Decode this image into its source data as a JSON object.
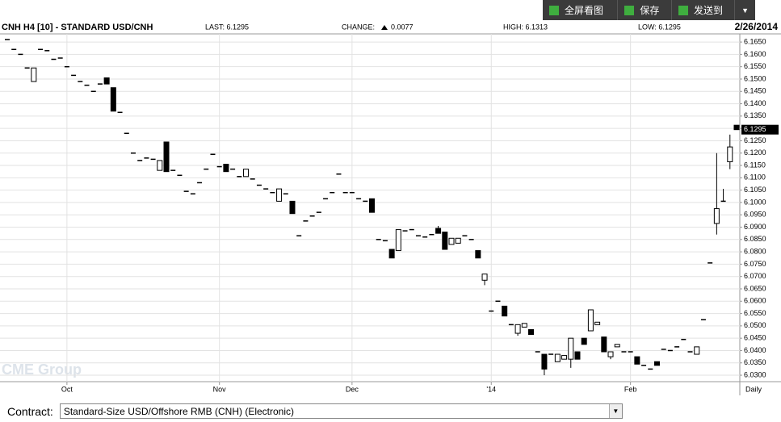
{
  "toolbar": {
    "fullscreen": "全屏看图",
    "save": "保存",
    "send": "发送到"
  },
  "contract": {
    "label": "Contract:",
    "value": "Standard-Size USD/Offshore RMB (CNH) (Electronic)"
  },
  "chart_data": {
    "type": "candlestick",
    "title": "CNH H4 [10] - STANDARD USD/CNH",
    "last": "LAST: 6.1295",
    "change_label": "CHANGE:",
    "change": "0.0077",
    "high": "HIGH: 6.1313",
    "low": "LOW: 6.1295",
    "date": "2/26/2014",
    "watermark": "CME Group",
    "x_unit": "Daily",
    "price_marker": {
      "value": 6.1295,
      "label": "6.1295"
    },
    "grid": true,
    "ylim": [
      6.0274,
      6.1683
    ],
    "yticks": [
      {
        "value": 6.03,
        "label": "6.0300"
      },
      {
        "value": 6.035,
        "label": "6.0350"
      },
      {
        "value": 6.04,
        "label": "6.0400"
      },
      {
        "value": 6.045,
        "label": "6.0450"
      },
      {
        "value": 6.05,
        "label": "6.0500"
      },
      {
        "value": 6.055,
        "label": "6.0550"
      },
      {
        "value": 6.06,
        "label": "6.0600"
      },
      {
        "value": 6.065,
        "label": "6.0650"
      },
      {
        "value": 6.07,
        "label": "6.0700"
      },
      {
        "value": 6.075,
        "label": "6.0750"
      },
      {
        "value": 6.08,
        "label": "6.0800"
      },
      {
        "value": 6.085,
        "label": "6.0850"
      },
      {
        "value": 6.09,
        "label": "6.0900"
      },
      {
        "value": 6.095,
        "label": "6.0950"
      },
      {
        "value": 6.1,
        "label": "6.1000"
      },
      {
        "value": 6.105,
        "label": "6.1050"
      },
      {
        "value": 6.11,
        "label": "6.1100"
      },
      {
        "value": 6.115,
        "label": "6.1150"
      },
      {
        "value": 6.12,
        "label": "6.1200"
      },
      {
        "value": 6.125,
        "label": "6.1250"
      },
      {
        "value": 6.13,
        "label": "6.1300"
      },
      {
        "value": 6.135,
        "label": "6.1350"
      },
      {
        "value": 6.14,
        "label": "6.1400"
      },
      {
        "value": 6.145,
        "label": "6.1450"
      },
      {
        "value": 6.15,
        "label": "6.1500"
      },
      {
        "value": 6.155,
        "label": "6.1550"
      },
      {
        "value": 6.16,
        "label": "6.1600"
      },
      {
        "value": 6.165,
        "label": "6.1650"
      }
    ],
    "categories": [
      null,
      null,
      null,
      null,
      null,
      null,
      null,
      null,
      null,
      "Oct",
      null,
      null,
      null,
      null,
      null,
      null,
      null,
      null,
      null,
      null,
      null,
      null,
      null,
      null,
      null,
      null,
      null,
      null,
      null,
      null,
      null,
      null,
      "Nov",
      null,
      null,
      null,
      null,
      null,
      null,
      null,
      null,
      null,
      null,
      null,
      null,
      null,
      null,
      null,
      null,
      null,
      null,
      null,
      "Dec",
      null,
      null,
      null,
      null,
      null,
      null,
      null,
      null,
      null,
      null,
      null,
      null,
      null,
      null,
      null,
      null,
      null,
      null,
      null,
      null,
      "'14",
      null,
      null,
      null,
      null,
      null,
      null,
      null,
      null,
      null,
      null,
      null,
      null,
      null,
      null,
      null,
      null,
      null,
      null,
      null,
      null,
      "Feb",
      null,
      null,
      null,
      null,
      null,
      null,
      null,
      null,
      null,
      null,
      null,
      null,
      null,
      null,
      null,
      null
    ],
    "ohlc": [
      [
        6.166,
        6.166,
        6.166,
        6.166
      ],
      [
        6.162,
        6.162,
        6.162,
        6.162
      ],
      [
        6.16,
        6.16,
        6.16,
        6.16
      ],
      [
        6.1545,
        6.1545,
        6.1545,
        6.1545
      ],
      [
        6.149,
        6.1545,
        6.149,
        6.1545
      ],
      [
        6.162,
        6.162,
        6.162,
        6.162
      ],
      [
        6.1615,
        6.1615,
        6.1615,
        6.1615
      ],
      [
        6.158,
        6.158,
        6.158,
        6.158
      ],
      [
        6.1585,
        6.1585,
        6.1585,
        6.1585
      ],
      [
        6.155,
        6.155,
        6.155,
        6.155
      ],
      [
        6.1515,
        6.1515,
        6.1515,
        6.1515
      ],
      [
        6.149,
        6.149,
        6.149,
        6.149
      ],
      [
        6.1475,
        6.1475,
        6.1475,
        6.1475
      ],
      [
        6.145,
        6.145,
        6.145,
        6.145
      ],
      [
        6.148,
        6.148,
        6.148,
        6.148
      ],
      [
        6.1505,
        6.1505,
        6.148,
        6.148
      ],
      [
        6.1465,
        6.1465,
        6.137,
        6.137
      ],
      [
        6.1365,
        6.1365,
        6.1365,
        6.1365
      ],
      [
        6.128,
        6.128,
        6.128,
        6.128
      ],
      [
        6.12,
        6.12,
        6.12,
        6.12
      ],
      [
        6.117,
        6.117,
        6.117,
        6.117
      ],
      [
        6.118,
        6.118,
        6.118,
        6.118
      ],
      [
        6.1175,
        6.1175,
        6.1175,
        6.1175
      ],
      [
        6.113,
        6.117,
        6.113,
        6.117
      ],
      [
        6.1245,
        6.1245,
        6.1125,
        6.1125
      ],
      [
        6.113,
        6.113,
        6.113,
        6.113
      ],
      [
        6.111,
        6.111,
        6.111,
        6.111
      ],
      [
        6.1045,
        6.1045,
        6.1045,
        6.1045
      ],
      [
        6.1035,
        6.1035,
        6.1035,
        6.1035
      ],
      [
        6.108,
        6.108,
        6.108,
        6.108
      ],
      [
        6.1135,
        6.1135,
        6.1135,
        6.1135
      ],
      [
        6.1195,
        6.1195,
        6.1195,
        6.1195
      ],
      [
        6.1145,
        6.1145,
        6.1145,
        6.1145
      ],
      [
        6.1155,
        6.1155,
        6.1125,
        6.1125
      ],
      [
        6.1135,
        6.1135,
        6.1135,
        6.1135
      ],
      [
        6.1105,
        6.1105,
        6.1105,
        6.1105
      ],
      [
        6.1105,
        6.1135,
        6.1105,
        6.1135
      ],
      [
        6.1095,
        6.1095,
        6.1095,
        6.1095
      ],
      [
        6.107,
        6.107,
        6.107,
        6.107
      ],
      [
        6.1055,
        6.1055,
        6.1055,
        6.1055
      ],
      [
        6.104,
        6.104,
        6.104,
        6.104
      ],
      [
        6.1005,
        6.1055,
        6.1005,
        6.1055
      ],
      [
        6.1035,
        6.1035,
        6.1035,
        6.1035
      ],
      [
        6.1005,
        6.1005,
        6.0955,
        6.0955
      ],
      [
        6.0865,
        6.0865,
        6.0865,
        6.0865
      ],
      [
        6.0925,
        6.0925,
        6.0925,
        6.0925
      ],
      [
        6.0945,
        6.0945,
        6.0945,
        6.0945
      ],
      [
        6.096,
        6.096,
        6.096,
        6.096
      ],
      [
        6.1015,
        6.1015,
        6.1015,
        6.1015
      ],
      [
        6.104,
        6.104,
        6.104,
        6.104
      ],
      [
        6.1115,
        6.1115,
        6.1115,
        6.1115
      ],
      [
        6.104,
        6.104,
        6.104,
        6.104
      ],
      [
        6.104,
        6.104,
        6.104,
        6.104
      ],
      [
        6.1015,
        6.1015,
        6.1015,
        6.1015
      ],
      [
        6.1005,
        6.1005,
        6.1005,
        6.1005
      ],
      [
        6.1015,
        6.1015,
        6.096,
        6.096
      ],
      [
        6.085,
        6.085,
        6.085,
        6.085
      ],
      [
        6.0845,
        6.0845,
        6.0845,
        6.0845
      ],
      [
        6.081,
        6.081,
        6.0775,
        6.0775
      ],
      [
        6.0805,
        6.089,
        6.0805,
        6.089
      ],
      [
        6.0885,
        6.0885,
        6.0885,
        6.0885
      ],
      [
        6.089,
        6.089,
        6.089,
        6.089
      ],
      [
        6.0865,
        6.0865,
        6.0865,
        6.0865
      ],
      [
        6.086,
        6.086,
        6.086,
        6.086
      ],
      [
        6.087,
        6.087,
        6.087,
        6.087
      ],
      [
        6.0895,
        6.0905,
        6.0875,
        6.0875
      ],
      [
        6.088,
        6.088,
        6.081,
        6.081
      ],
      [
        6.083,
        6.0855,
        6.083,
        6.0855
      ],
      [
        6.0835,
        6.0855,
        6.0835,
        6.0855
      ],
      [
        6.0865,
        6.0865,
        6.0865,
        6.0865
      ],
      [
        6.085,
        6.085,
        6.085,
        6.085
      ],
      [
        6.0805,
        6.0805,
        6.0775,
        6.0775
      ],
      [
        6.0685,
        6.071,
        6.0665,
        6.071
      ],
      [
        6.056,
        6.056,
        6.056,
        6.056
      ],
      [
        6.06,
        6.06,
        6.06,
        6.06
      ],
      [
        6.058,
        6.058,
        6.054,
        6.054
      ],
      [
        6.0505,
        6.0505,
        6.0505,
        6.0505
      ],
      [
        6.047,
        6.0505,
        6.046,
        6.0505
      ],
      [
        6.0495,
        6.051,
        6.0495,
        6.051
      ],
      [
        6.0485,
        6.0485,
        6.0465,
        6.0465
      ],
      [
        6.0395,
        6.0395,
        6.0395,
        6.0395
      ],
      [
        6.0385,
        6.0385,
        6.03,
        6.0325
      ],
      [
        6.0385,
        6.0385,
        6.0385,
        6.0385
      ],
      [
        6.0355,
        6.0385,
        6.0355,
        6.0385
      ],
      [
        6.0365,
        6.038,
        6.0365,
        6.038
      ],
      [
        6.0365,
        6.045,
        6.033,
        6.045
      ],
      [
        6.0395,
        6.0395,
        6.0365,
        6.0365
      ],
      [
        6.045,
        6.045,
        6.0425,
        6.0425
      ],
      [
        6.048,
        6.0565,
        6.048,
        6.0565
      ],
      [
        6.0505,
        6.0515,
        6.0505,
        6.0515
      ],
      [
        6.0455,
        6.0455,
        6.0395,
        6.0395
      ],
      [
        6.0375,
        6.0395,
        6.0365,
        6.0395
      ],
      [
        6.0415,
        6.0425,
        6.0415,
        6.0425
      ],
      [
        6.0395,
        6.0395,
        6.0395,
        6.0395
      ],
      [
        6.0395,
        6.0395,
        6.0395,
        6.0395
      ],
      [
        6.0375,
        6.0375,
        6.0345,
        6.0345
      ],
      [
        6.034,
        6.034,
        6.034,
        6.034
      ],
      [
        6.0325,
        6.0325,
        6.0325,
        6.0325
      ],
      [
        6.0355,
        6.0355,
        6.034,
        6.034
      ],
      [
        6.0405,
        6.0405,
        6.0405,
        6.0405
      ],
      [
        6.04,
        6.04,
        6.04,
        6.04
      ],
      [
        6.0415,
        6.0415,
        6.0415,
        6.0415
      ],
      [
        6.0445,
        6.0445,
        6.0445,
        6.0445
      ],
      [
        6.0395,
        6.0395,
        6.0395,
        6.0395
      ],
      [
        6.0385,
        6.0415,
        6.0385,
        6.0415
      ],
      [
        6.0525,
        6.0525,
        6.0525,
        6.0525
      ],
      [
        6.0755,
        6.0755,
        6.0755,
        6.0755
      ],
      [
        6.0915,
        6.12,
        6.087,
        6.0975
      ],
      [
        6.1005,
        6.1055,
        6.1005,
        6.1005
      ],
      [
        6.1165,
        6.1275,
        6.1135,
        6.1225
      ],
      [
        6.1313,
        6.1313,
        6.1295,
        6.1295
      ]
    ]
  }
}
